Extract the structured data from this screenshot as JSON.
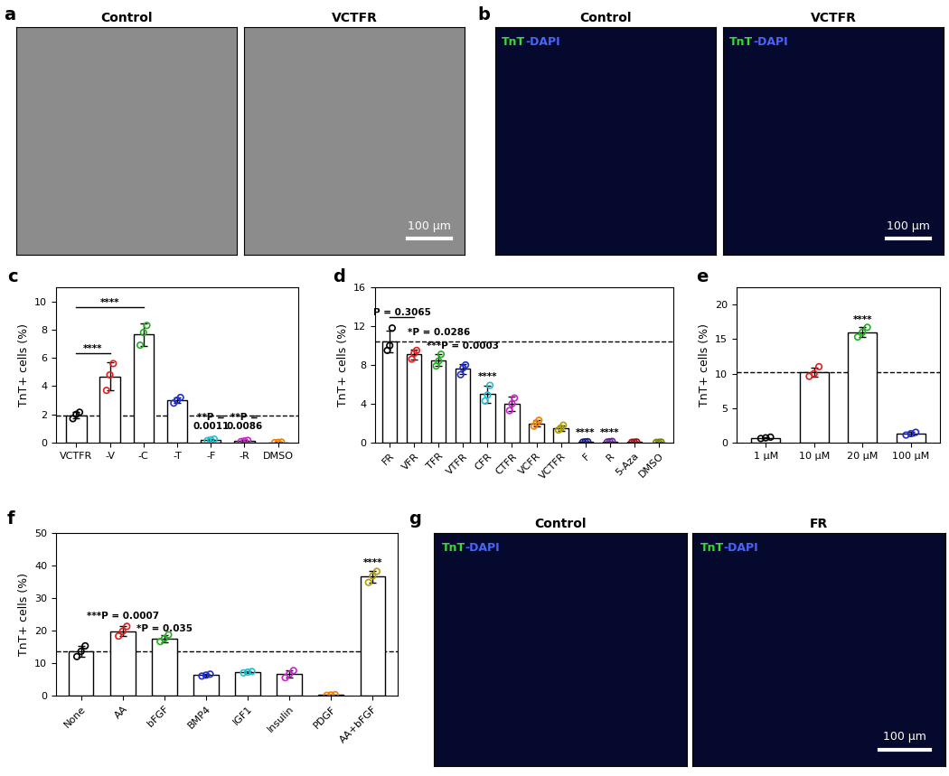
{
  "chart_data": [
    {
      "type": "image",
      "panel": "a",
      "images": [
        {
          "title": "Control",
          "color": "#8c8c8c"
        },
        {
          "title": "VCTFR",
          "color": "#8c8c8c",
          "scale_bar": "100 µm"
        }
      ]
    },
    {
      "type": "image",
      "panel": "b",
      "stain": [
        {
          "text": "TnT",
          "color": "#33dd33"
        },
        {
          "text": "-DAPI",
          "color": "#4466ff"
        }
      ],
      "images": [
        {
          "title": "Control",
          "color": "#06092e"
        },
        {
          "title": "VCTFR",
          "color": "#06092e",
          "scale_bar": "100 µm"
        }
      ]
    },
    {
      "type": "bar",
      "panel": "c",
      "y_label": "TnT+ cells (%)",
      "categories": [
        "VCTFR",
        "-V",
        "-C",
        "-T",
        "-F",
        "-R",
        "DMSO"
      ],
      "values": [
        1.95,
        4.7,
        7.65,
        3.0,
        0.2,
        0.12,
        0.02
      ],
      "errors": [
        0.25,
        1.0,
        0.8,
        0.2,
        0.05,
        0.05,
        0.02
      ],
      "points": [
        [
          1.7,
          2.0,
          2.15
        ],
        [
          3.7,
          4.8,
          5.6
        ],
        [
          6.9,
          7.8,
          8.3
        ],
        [
          2.8,
          3.0,
          3.2
        ],
        [
          0.15,
          0.2,
          0.25
        ],
        [
          0.08,
          0.12,
          0.16
        ],
        [
          0.0,
          0.02,
          0.04
        ]
      ],
      "colors": [
        "#000000",
        "#e02020",
        "#20b020",
        "#2030d0",
        "#20c0d0",
        "#d020d0",
        "#f08000"
      ],
      "ylim": [
        0,
        11
      ],
      "yticks": [
        0,
        2,
        4,
        6,
        8,
        10
      ],
      "ref_line": 1.95,
      "annotations": [
        {
          "text": "****",
          "from": "VCTFR",
          "to": "-V",
          "y": 6.3
        },
        {
          "text": "****",
          "from": "VCTFR",
          "to": "-C",
          "y": 9.6
        },
        {
          "text": "**P =\n0.0011",
          "at": "-F",
          "y": 0.8
        },
        {
          "text": "**P =\n0.0086",
          "at": "-R",
          "y": 0.8
        }
      ]
    },
    {
      "type": "bar",
      "panel": "d",
      "y_label": "TnT+ cells (%)",
      "categories": [
        "FR",
        "VFR",
        "TFR",
        "VTFR",
        "CFR",
        "CTFR",
        "VCFR",
        "VCTFR",
        "F",
        "R",
        "5-Aza",
        "DMSO"
      ],
      "values": [
        10.4,
        9.1,
        8.5,
        7.6,
        5.0,
        4.0,
        2.0,
        1.5,
        0.08,
        0.1,
        0.05,
        0.04
      ],
      "errors": [
        1.1,
        0.5,
        0.6,
        0.5,
        0.9,
        0.7,
        0.3,
        0.25,
        0.03,
        0.03,
        0.02,
        0.02
      ],
      "points": [
        [
          9.5,
          10.0,
          11.8
        ],
        [
          8.6,
          9.2,
          9.5
        ],
        [
          7.9,
          8.4,
          9.1
        ],
        [
          7.0,
          7.7,
          8.0
        ],
        [
          4.3,
          4.9,
          5.9
        ],
        [
          3.3,
          4.0,
          4.6
        ],
        [
          1.7,
          2.0,
          2.3
        ],
        [
          1.3,
          1.5,
          1.8
        ],
        [
          0.05,
          0.08,
          0.1
        ],
        [
          0.06,
          0.1,
          0.13
        ],
        [
          0.03,
          0.05,
          0.07
        ],
        [
          0.02,
          0.04,
          0.06
        ]
      ],
      "colors": [
        "#000000",
        "#e02020",
        "#20b020",
        "#2030d0",
        "#20c0d0",
        "#d020d0",
        "#f08000",
        "#b0a000",
        "#102080",
        "#7020a0",
        "#a01010",
        "#808000"
      ],
      "ylim": [
        0,
        16
      ],
      "yticks": [
        0,
        4,
        8,
        12,
        16
      ],
      "ref_line": 10.4,
      "annotations": [
        {
          "text": "P = 0.3065",
          "from": "FR",
          "to": "VFR",
          "y": 12.9
        },
        {
          "text": "*P = 0.0286",
          "at": "TFR",
          "y": 10.9
        },
        {
          "text": "***P = 0.0003",
          "at": "VTFR",
          "y": 9.5
        },
        {
          "text": "****",
          "at": "CFR",
          "y": 6.3
        },
        {
          "text": "****",
          "at": "F",
          "y": 0.6
        },
        {
          "text": "****",
          "at": "R",
          "y": 0.6
        }
      ]
    },
    {
      "type": "bar",
      "panel": "e",
      "y_label": "TnT+ cells (%)",
      "categories": [
        "1 µM",
        "10 µM",
        "20 µM",
        "100 µM"
      ],
      "values": [
        0.7,
        10.2,
        16.0,
        1.3
      ],
      "errors": [
        0.1,
        0.6,
        0.7,
        0.25
      ],
      "points": [
        [
          0.6,
          0.7,
          0.8
        ],
        [
          9.6,
          10.0,
          11.0
        ],
        [
          15.3,
          16.0,
          16.7
        ],
        [
          1.1,
          1.3,
          1.5
        ]
      ],
      "colors": [
        "#000000",
        "#e02020",
        "#20b020",
        "#2030d0"
      ],
      "ylim": [
        0,
        22.5
      ],
      "yticks": [
        0,
        5,
        10,
        15,
        20
      ],
      "ref_line": 10.2,
      "annotations": [
        {
          "text": "****",
          "at": "20 µM",
          "y": 17.2
        }
      ]
    },
    {
      "type": "bar",
      "panel": "f",
      "y_label": "TnT+ cells (%)",
      "categories": [
        "None",
        "AA",
        "bFGF",
        "BMP4",
        "IGF1",
        "Insulin",
        "PDGF",
        "AA+bFGF"
      ],
      "values": [
        13.6,
        19.8,
        17.6,
        6.3,
        7.2,
        6.6,
        0.2,
        36.6
      ],
      "errors": [
        1.6,
        1.5,
        1.1,
        0.4,
        0.3,
        1.1,
        0.1,
        1.8
      ],
      "points": [
        [
          12.0,
          13.6,
          15.3
        ],
        [
          18.3,
          19.8,
          21.3
        ],
        [
          16.6,
          17.5,
          18.7
        ],
        [
          6.0,
          6.3,
          6.6
        ],
        [
          7.0,
          7.2,
          7.4
        ],
        [
          5.5,
          6.6,
          7.7
        ],
        [
          0.1,
          0.2,
          0.3
        ],
        [
          34.8,
          36.8,
          38.2
        ]
      ],
      "colors": [
        "#000000",
        "#e02020",
        "#20b020",
        "#2030d0",
        "#20c0d0",
        "#d020d0",
        "#f08000",
        "#b0a000"
      ],
      "ylim": [
        0,
        50
      ],
      "yticks": [
        0,
        10,
        20,
        30,
        40,
        50
      ],
      "ref_line": 13.6,
      "annotations": [
        {
          "text": "***P = 0.0007",
          "at": "AA",
          "y": 23.0
        },
        {
          "text": "*P = 0.035",
          "at": "bFGF",
          "y": 19.2
        },
        {
          "text": "****",
          "at": "AA+bFGF",
          "y": 39.5
        }
      ]
    },
    {
      "type": "image",
      "panel": "g",
      "stain": [
        {
          "text": "TnT",
          "color": "#33dd33"
        },
        {
          "text": "-DAPI",
          "color": "#4466ff"
        }
      ],
      "images": [
        {
          "title": "Control",
          "color": "#06092e"
        },
        {
          "title": "FR",
          "color": "#06092e",
          "scale_bar": "100 µm"
        }
      ]
    }
  ]
}
